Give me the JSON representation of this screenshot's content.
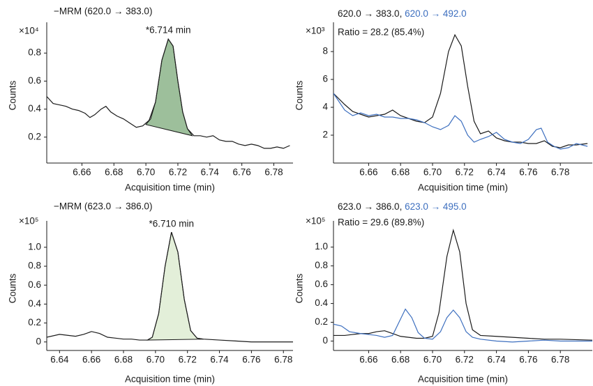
{
  "chart_data": [
    {
      "type": "line",
      "title": "−MRM (620.0 → 383.0)",
      "annotation": "*6.714 min",
      "y_multiplier": "×10⁴",
      "xlabel": "Acquisition time (min)",
      "ylabel": "Counts",
      "xlim": [
        6.638,
        6.792
      ],
      "ylim": [
        0.015,
        0.98
      ],
      "xticks": [
        6.66,
        6.68,
        {
          "value": 6.7,
          "label": "6.70"
        },
        6.72,
        6.74,
        6.76,
        6.78
      ],
      "yticks": [
        0.2,
        0.4,
        0.6,
        0.8
      ],
      "series": [
        {
          "color": "#1a1a1a",
          "x": [
            6.638,
            6.642,
            6.646,
            6.65,
            6.654,
            6.658,
            6.662,
            6.665,
            6.668,
            6.672,
            6.675,
            6.678,
            6.682,
            6.686,
            6.69,
            6.694,
            6.698,
            6.702,
            6.706,
            6.71,
            6.714,
            6.717,
            6.72,
            6.723,
            6.726,
            6.73,
            6.734,
            6.738,
            6.742,
            6.746,
            6.75,
            6.754,
            6.758,
            6.762,
            6.766,
            6.77,
            6.774,
            6.778,
            6.782,
            6.786,
            6.79
          ],
          "values": [
            0.49,
            0.44,
            0.43,
            0.42,
            0.4,
            0.39,
            0.37,
            0.34,
            0.36,
            0.4,
            0.42,
            0.38,
            0.35,
            0.33,
            0.3,
            0.27,
            0.28,
            0.32,
            0.45,
            0.75,
            0.9,
            0.85,
            0.6,
            0.38,
            0.26,
            0.21,
            0.21,
            0.2,
            0.21,
            0.18,
            0.17,
            0.17,
            0.15,
            0.14,
            0.15,
            0.14,
            0.12,
            0.12,
            0.13,
            0.12,
            0.14
          ]
        }
      ],
      "peak_area": {
        "color": "#9dbf9b",
        "x": [
          6.7,
          6.703,
          6.706,
          6.71,
          6.714,
          6.717,
          6.72,
          6.723,
          6.726,
          6.729
        ],
        "values": [
          0.29,
          0.33,
          0.45,
          0.75,
          0.9,
          0.85,
          0.6,
          0.38,
          0.26,
          0.21
        ]
      }
    },
    {
      "type": "line",
      "annotation": "Ratio = 28.2 (85.4%)",
      "annotation_color": "#3d6fbf",
      "y_multiplier": "×10³",
      "xlabel": "Acquisition time (min)",
      "ylabel": "Counts",
      "xlim": [
        6.638,
        6.8
      ],
      "ylim": [
        0,
        9.7
      ],
      "xticks": [
        6.66,
        6.68,
        {
          "value": 6.7,
          "label": "6.70"
        },
        6.72,
        6.74,
        6.76,
        6.78
      ],
      "yticks": [
        2,
        4,
        6,
        8
      ],
      "series": [
        {
          "name": "620.0 → 383.0,",
          "color": "#1a1a1a",
          "x": [
            6.638,
            6.645,
            6.65,
            6.655,
            6.66,
            6.665,
            6.67,
            6.675,
            6.68,
            6.685,
            6.69,
            6.695,
            6.7,
            6.705,
            6.71,
            6.714,
            6.718,
            6.722,
            6.726,
            6.73,
            6.735,
            6.74,
            6.745,
            6.75,
            6.755,
            6.76,
            6.765,
            6.77,
            6.775,
            6.78,
            6.785,
            6.79,
            6.797
          ],
          "values": [
            5.0,
            4.2,
            3.7,
            3.5,
            3.3,
            3.4,
            3.5,
            3.8,
            3.4,
            3.2,
            3.0,
            2.9,
            3.3,
            5.0,
            8.0,
            9.2,
            8.4,
            5.5,
            3.0,
            2.1,
            2.3,
            1.8,
            1.6,
            1.5,
            1.5,
            1.4,
            1.4,
            1.6,
            1.2,
            1.1,
            1.3,
            1.3,
            1.4
          ]
        },
        {
          "name": "620.0 → 492.0",
          "color": "#3d6fbf",
          "x": [
            6.638,
            6.645,
            6.65,
            6.655,
            6.66,
            6.665,
            6.67,
            6.675,
            6.68,
            6.685,
            6.69,
            6.695,
            6.7,
            6.705,
            6.71,
            6.714,
            6.718,
            6.722,
            6.726,
            6.73,
            6.735,
            6.74,
            6.745,
            6.75,
            6.755,
            6.76,
            6.765,
            6.768,
            6.772,
            6.776,
            6.78,
            6.785,
            6.79,
            6.797
          ],
          "values": [
            5.0,
            3.8,
            3.4,
            3.6,
            3.4,
            3.5,
            3.3,
            3.3,
            3.2,
            3.2,
            3.1,
            2.9,
            2.6,
            2.4,
            2.7,
            3.4,
            3.0,
            2.0,
            1.5,
            1.7,
            1.9,
            2.2,
            1.7,
            1.5,
            1.4,
            1.7,
            2.4,
            2.5,
            1.5,
            1.2,
            1.0,
            1.1,
            1.4,
            1.2
          ]
        }
      ]
    },
    {
      "type": "line",
      "title": "−MRM (623.0 → 386.0)",
      "annotation": "*6.710 min",
      "y_multiplier": "×10⁵",
      "xlabel": "Acquisition time (min)",
      "ylabel": "Counts",
      "xlim": [
        6.632,
        6.786
      ],
      "ylim": [
        -0.09,
        1.22
      ],
      "xticks": [
        6.64,
        6.66,
        6.68,
        {
          "value": 6.7,
          "label": "6.70"
        },
        6.72,
        6.74,
        6.76,
        6.78
      ],
      "yticks": [
        0,
        0.2,
        0.4,
        0.6,
        0.8,
        {
          "value": 1,
          "label": "1.0"
        }
      ],
      "series": [
        {
          "color": "#1a1a1a",
          "x": [
            6.632,
            6.64,
            6.645,
            6.65,
            6.655,
            6.66,
            6.665,
            6.67,
            6.675,
            6.68,
            6.685,
            6.69,
            6.695,
            6.698,
            6.702,
            6.706,
            6.71,
            6.714,
            6.718,
            6.722,
            6.726,
            6.73,
            6.74,
            6.75,
            6.76,
            6.77,
            6.786
          ],
          "values": [
            0.05,
            0.08,
            0.07,
            0.06,
            0.08,
            0.11,
            0.09,
            0.05,
            0.04,
            0.03,
            0.03,
            0.02,
            0.02,
            0.05,
            0.3,
            0.8,
            1.16,
            0.95,
            0.45,
            0.12,
            0.04,
            0.03,
            0.02,
            0.01,
            0,
            0,
            0
          ]
        }
      ],
      "peak_area": {
        "color": "#e3efd9",
        "x": [
          6.695,
          6.698,
          6.702,
          6.706,
          6.71,
          6.714,
          6.718,
          6.722,
          6.726,
          6.73
        ],
        "values": [
          0.02,
          0.05,
          0.3,
          0.8,
          1.16,
          0.95,
          0.45,
          0.12,
          0.04,
          0.03
        ]
      }
    },
    {
      "type": "line",
      "annotation": "Ratio = 29.6 (89.8%)",
      "annotation_color": "#3d6fbf",
      "y_multiplier": "×10⁵",
      "xlabel": "Acquisition time (min)",
      "ylabel": "Counts",
      "xlim": [
        6.638,
        6.8
      ],
      "ylim": [
        -0.1,
        1.22
      ],
      "xticks": [
        6.66,
        6.68,
        {
          "value": 6.7,
          "label": "6.70"
        },
        6.72,
        6.74,
        6.76,
        6.78
      ],
      "yticks": [
        0,
        0.2,
        0.4,
        0.6,
        0.8,
        {
          "value": 1,
          "label": "1.0"
        }
      ],
      "series": [
        {
          "name": "623.0 → 386.0,",
          "color": "#1a1a1a",
          "x": [
            6.638,
            6.645,
            6.65,
            6.655,
            6.66,
            6.665,
            6.67,
            6.675,
            6.68,
            6.685,
            6.69,
            6.695,
            6.7,
            6.704,
            6.709,
            6.713,
            6.717,
            6.721,
            6.725,
            6.73,
            6.74,
            6.75,
            6.76,
            6.77,
            6.78,
            6.8
          ],
          "values": [
            0.06,
            0.06,
            0.07,
            0.08,
            0.08,
            0.1,
            0.11,
            0.08,
            0.05,
            0.04,
            0.03,
            0.03,
            0.05,
            0.3,
            0.9,
            1.18,
            0.95,
            0.4,
            0.12,
            0.06,
            0.05,
            0.04,
            0.03,
            0.02,
            0.02,
            0.01
          ]
        },
        {
          "name": "623.0 → 495.0",
          "color": "#3d6fbf",
          "x": [
            6.638,
            6.643,
            6.648,
            6.655,
            6.66,
            6.665,
            6.67,
            6.675,
            6.679,
            6.683,
            6.687,
            6.691,
            6.695,
            6.7,
            6.705,
            6.709,
            6.713,
            6.717,
            6.721,
            6.725,
            6.73,
            6.74,
            6.75,
            6.76,
            6.77,
            6.78,
            6.8
          ],
          "values": [
            0.18,
            0.16,
            0.1,
            0.08,
            0.07,
            0.06,
            0.04,
            0.06,
            0.2,
            0.34,
            0.25,
            0.09,
            0.03,
            0.02,
            0.1,
            0.25,
            0.33,
            0.25,
            0.1,
            0.04,
            0.02,
            0,
            -0.01,
            0,
            0.01,
            0,
            0
          ]
        }
      ]
    }
  ]
}
